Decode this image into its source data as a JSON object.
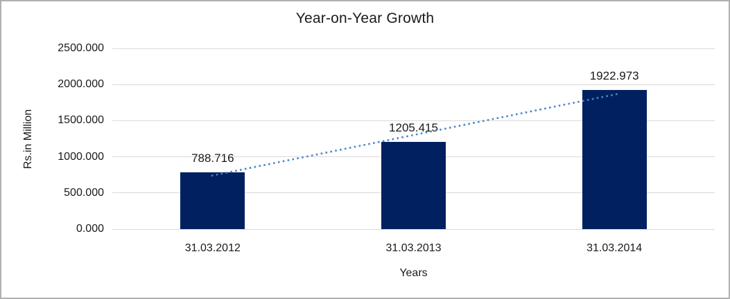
{
  "chart_data": {
    "type": "bar",
    "title": "Year-on-Year Growth",
    "xlabel": "Years",
    "ylabel": "Rs.in Million",
    "categories": [
      "31.03.2012",
      "31.03.2013",
      "31.03.2014"
    ],
    "values": [
      788.716,
      1205.415,
      1922.973
    ],
    "value_labels": [
      "788.716",
      "1205.415",
      "1922.973"
    ],
    "ylim": [
      0,
      2500
    ],
    "ytick_step": 500,
    "ytick_labels": [
      "0.000",
      "500.000",
      "1000.000",
      "1500.000",
      "2000.000",
      "2500.000"
    ],
    "grid": true,
    "legend": "none",
    "bar_color": "#002060",
    "gridline_color": "#d9d9d9",
    "trendline": {
      "type": "linear",
      "style": "dotted",
      "color": "#4a86c8"
    }
  }
}
